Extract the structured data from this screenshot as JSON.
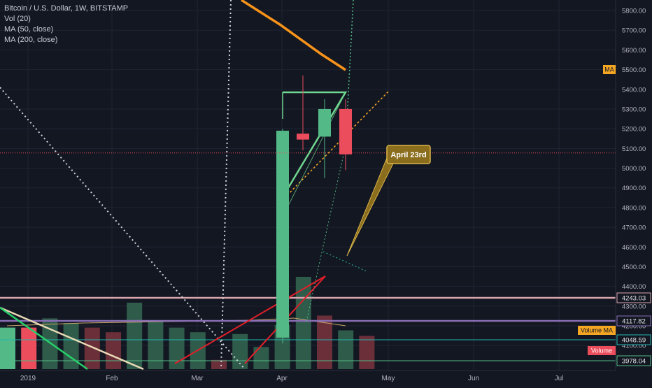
{
  "header": {
    "symbol": "Bitcoin / U.S. Dollar, 1W, BITSTAMP",
    "vol": "Vol (20)",
    "ma50": "MA (50, close)",
    "ma200": "MA (200, close)"
  },
  "colors": {
    "background": "#131722",
    "grid": "#1f2433",
    "up": "#53b987",
    "down": "#eb4d5c",
    "ma": "#f5a623",
    "annotation_fill": "#8a6d1d",
    "annotation_border": "#d9b44a"
  },
  "chart_data": {
    "type": "candlestick",
    "title": "Bitcoin / U.S. Dollar, 1W, BITSTAMP",
    "x_ticks": [
      "2019",
      "Feb",
      "Mar",
      "Apr",
      "May",
      "Jun",
      "Jul"
    ],
    "y_ticks": [
      "5800.00",
      "5700.00",
      "5600.00",
      "5500.00",
      "5400.00",
      "5300.00",
      "5200.00",
      "5100.00",
      "5000.00",
      "4900.00",
      "4800.00",
      "4700.00",
      "4600.00",
      "4500.00",
      "4400.00",
      "4300.00",
      "4200.00",
      "4100.00"
    ],
    "ylim": [
      3960,
      5880
    ],
    "candles": [
      {
        "week": "2019-04-01",
        "open": 4140,
        "high": 5200,
        "low": 4110,
        "close": 5190
      },
      {
        "week": "2019-04-08",
        "open": 5175,
        "high": 5470,
        "low": 5090,
        "close": 5145
      },
      {
        "week": "2019-04-15",
        "open": 5160,
        "high": 5350,
        "low": 4950,
        "close": 5300
      },
      {
        "week": "2019-04-22",
        "open": 5300,
        "high": 5350,
        "low": 4990,
        "close": 5070
      }
    ],
    "volume_bars": [
      {
        "color": "up",
        "rel": 0.45
      },
      {
        "color": "down",
        "rel": 0.45
      },
      {
        "color": "up",
        "rel": 0.55
      },
      {
        "color": "up",
        "rel": 0.5
      },
      {
        "color": "down",
        "rel": 0.45
      },
      {
        "color": "down",
        "rel": 0.4
      },
      {
        "color": "up",
        "rel": 0.72
      },
      {
        "color": "up",
        "rel": 0.52
      },
      {
        "color": "up",
        "rel": 0.45
      },
      {
        "color": "up",
        "rel": 0.4
      },
      {
        "color": "down",
        "rel": 0.1
      },
      {
        "color": "up",
        "rel": 0.38
      },
      {
        "color": "up",
        "rel": 0.24
      },
      {
        "color": "up",
        "rel": 0.48
      },
      {
        "color": "up",
        "rel": 1.0
      },
      {
        "color": "down",
        "rel": 0.58
      },
      {
        "color": "up",
        "rel": 0.42
      },
      {
        "color": "down",
        "rel": 0.36
      }
    ],
    "ma50": [
      [
        4960,
        5880
      ],
      [
        5700,
        5720
      ],
      [
        5600,
        5600
      ],
      [
        5480,
        5480
      ]
    ],
    "horizontal_levels": [
      {
        "label": "4243.03",
        "value": 4243.03,
        "color": "#d9a6ae"
      },
      {
        "label": "4117.82",
        "value": 4117.82,
        "color": "#8a6fb5"
      },
      {
        "label": "4048.59",
        "value": 4048.59,
        "color": "#22b7b0"
      },
      {
        "label": "3978.04",
        "value": 3978.04,
        "color": "#53b987"
      }
    ],
    "current_price": 5070,
    "labels": {
      "ma": "MA",
      "volume_ma": "Volume MA",
      "volume": "Volume",
      "annotation": "April 23rd"
    }
  }
}
